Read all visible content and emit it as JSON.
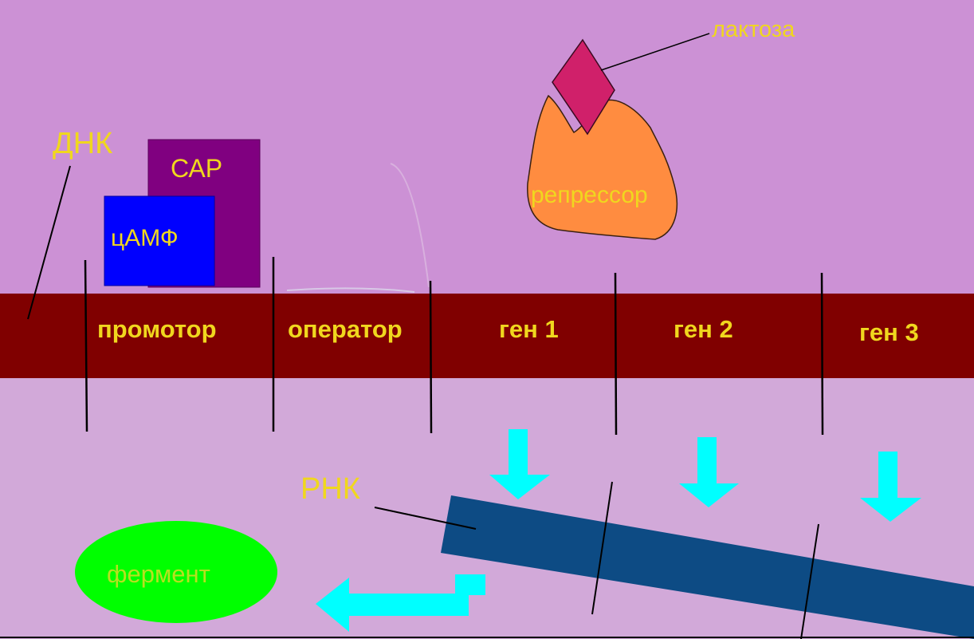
{
  "labels": {
    "dna": "ДНК",
    "cap": "САР",
    "camp": "цАМФ",
    "lactose": "лактоза",
    "repressor": "репрессор",
    "rna": "РНК",
    "enzyme": "фермент"
  },
  "dna_segments": [
    "промотор",
    "оператор",
    "ген 1",
    "ген 2",
    "ген 3"
  ],
  "colors": {
    "background_top": "#cc91d5",
    "background_bottom": "#d2a9d9",
    "dna_strand": "#800000",
    "label_text": "#f0d71e",
    "cap": "#800080",
    "camp": "#0000ff",
    "repressor": "#ff8c40",
    "lactose": "#d0206a",
    "rna_strand": "#0d4b84",
    "arrows": "#00ffff",
    "enzyme": "#00ff00"
  }
}
